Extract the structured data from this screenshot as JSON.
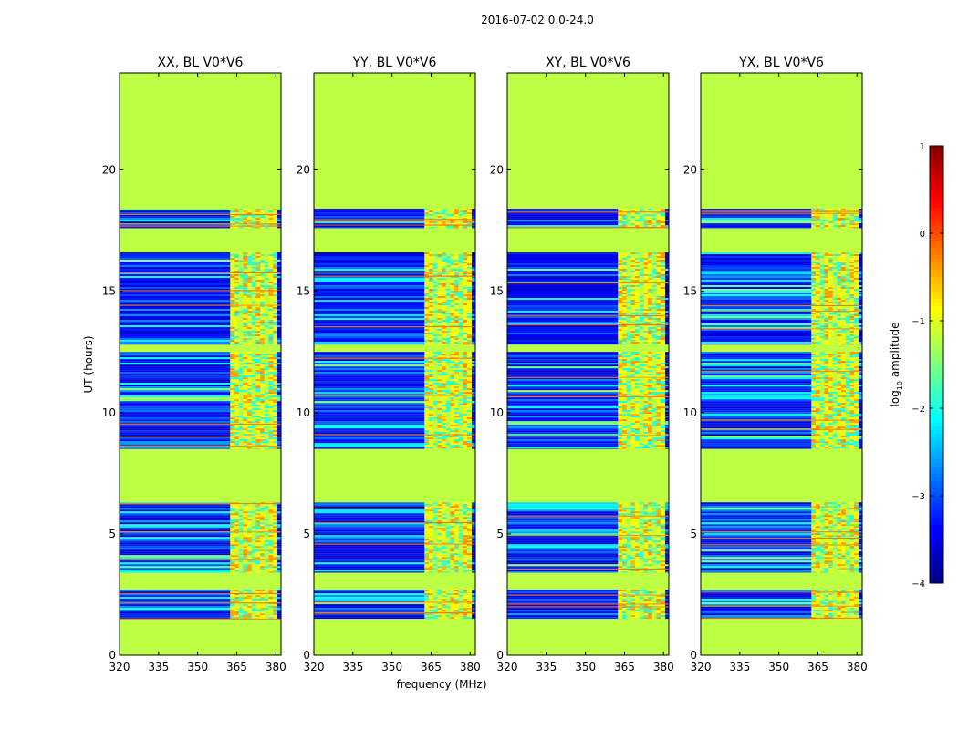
{
  "chart_data": {
    "type": "heatmap",
    "suptitle": "2016-07-02 0.0-24.0",
    "xlabel": "frequency (MHz)",
    "ylabel": "UT (hours)",
    "xlim": [
      320,
      382
    ],
    "ylim": [
      0,
      24
    ],
    "x_ticks": [
      320,
      335,
      350,
      365,
      380
    ],
    "y_ticks": [
      0,
      5,
      10,
      15,
      20
    ],
    "panels": [
      {
        "title": "XX, BL V0*V6",
        "band_offset": 0
      },
      {
        "title": "YY, BL V0*V6",
        "band_offset": 1
      },
      {
        "title": "XY, BL V0*V6",
        "band_offset": 2
      },
      {
        "title": "YX, BL V0*V6",
        "band_offset": 3
      }
    ],
    "empty_value_log10": -1.2,
    "data_segments_hours": [
      [
        1.5,
        2.7
      ],
      [
        3.4,
        6.3
      ],
      [
        8.5,
        12.5
      ],
      [
        12.8,
        16.6
      ],
      [
        17.6,
        18.4
      ]
    ],
    "rfi_frequency_range_mhz": [
      362.5,
      380.5
    ],
    "colorbar": {
      "label_prefix": "log",
      "label_sub": "10",
      "label_suffix": " amplitude",
      "range": [
        -4,
        1
      ],
      "ticks": [
        1,
        0,
        -1,
        -2,
        -3,
        -4
      ],
      "tick_labels": [
        "1",
        "0",
        "−1",
        "−2",
        "−3",
        "−4"
      ],
      "colormap": "jet"
    }
  }
}
